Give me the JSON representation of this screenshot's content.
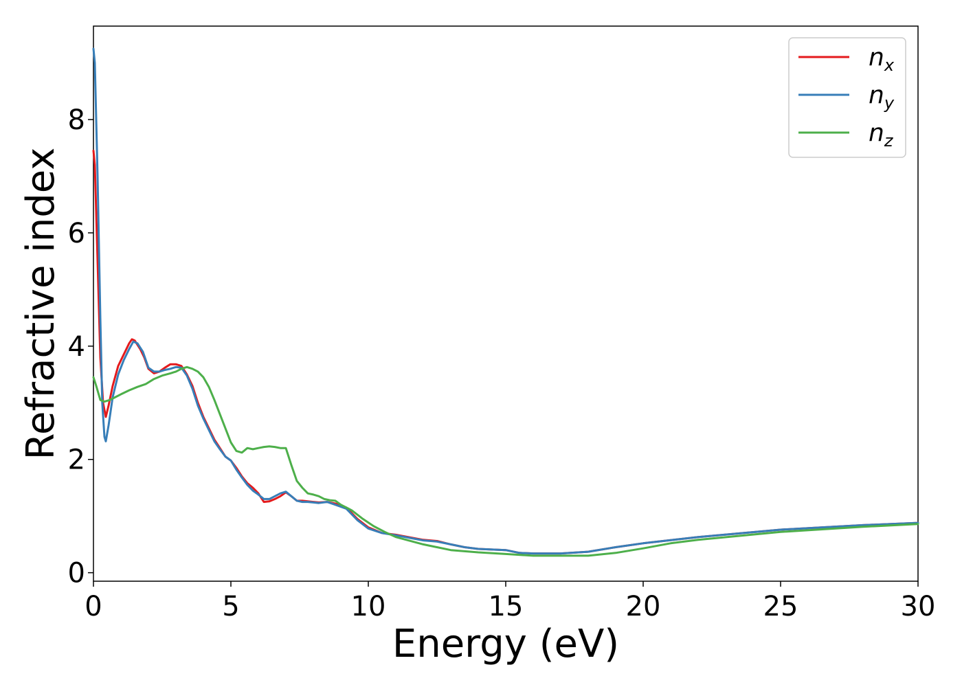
{
  "chart_data": {
    "type": "line",
    "title": "",
    "xlabel": "Energy (eV)",
    "ylabel": "Refractive index",
    "xlim": [
      0,
      30
    ],
    "ylim": [
      -0.15,
      9.65
    ],
    "xticks": [
      0,
      5,
      10,
      15,
      20,
      25,
      30
    ],
    "yticks": [
      0,
      2,
      4,
      6,
      8
    ],
    "grid": false,
    "legend_position": "top-right",
    "series": [
      {
        "name": "n_x",
        "legend_base": "n",
        "legend_sub": "x",
        "color": "#e41a1c",
        "points": [
          [
            0,
            7.45
          ],
          [
            0.05,
            7.2
          ],
          [
            0.15,
            5.5
          ],
          [
            0.25,
            3.8
          ],
          [
            0.35,
            3.0
          ],
          [
            0.45,
            2.75
          ],
          [
            0.55,
            2.95
          ],
          [
            0.7,
            3.3
          ],
          [
            0.9,
            3.65
          ],
          [
            1.1,
            3.85
          ],
          [
            1.3,
            4.05
          ],
          [
            1.4,
            4.12
          ],
          [
            1.5,
            4.1
          ],
          [
            1.7,
            3.95
          ],
          [
            1.85,
            3.8
          ],
          [
            2.0,
            3.6
          ],
          [
            2.2,
            3.52
          ],
          [
            2.4,
            3.55
          ],
          [
            2.6,
            3.62
          ],
          [
            2.8,
            3.68
          ],
          [
            3.0,
            3.68
          ],
          [
            3.2,
            3.65
          ],
          [
            3.4,
            3.5
          ],
          [
            3.6,
            3.3
          ],
          [
            3.8,
            3.0
          ],
          [
            4.0,
            2.75
          ],
          [
            4.2,
            2.55
          ],
          [
            4.4,
            2.35
          ],
          [
            4.6,
            2.2
          ],
          [
            4.8,
            2.05
          ],
          [
            5.0,
            1.98
          ],
          [
            5.2,
            1.85
          ],
          [
            5.4,
            1.7
          ],
          [
            5.6,
            1.58
          ],
          [
            5.8,
            1.5
          ],
          [
            6.0,
            1.4
          ],
          [
            6.2,
            1.25
          ],
          [
            6.4,
            1.26
          ],
          [
            6.6,
            1.3
          ],
          [
            6.8,
            1.35
          ],
          [
            7.0,
            1.42
          ],
          [
            7.2,
            1.35
          ],
          [
            7.4,
            1.27
          ],
          [
            7.6,
            1.27
          ],
          [
            7.8,
            1.26
          ],
          [
            8.0,
            1.25
          ],
          [
            8.2,
            1.24
          ],
          [
            8.5,
            1.25
          ],
          [
            8.8,
            1.22
          ],
          [
            9.2,
            1.15
          ],
          [
            9.6,
            0.95
          ],
          [
            10,
            0.8
          ],
          [
            10.5,
            0.7
          ],
          [
            11,
            0.67
          ],
          [
            12,
            0.58
          ],
          [
            12.5,
            0.56
          ],
          [
            13,
            0.5
          ],
          [
            13.5,
            0.45
          ],
          [
            14,
            0.42
          ],
          [
            15,
            0.4
          ],
          [
            15.5,
            0.35
          ],
          [
            16,
            0.34
          ],
          [
            17,
            0.34
          ],
          [
            18,
            0.37
          ],
          [
            19,
            0.45
          ],
          [
            20,
            0.52
          ],
          [
            22,
            0.63
          ],
          [
            25,
            0.76
          ],
          [
            28,
            0.84
          ],
          [
            30,
            0.88
          ]
        ]
      },
      {
        "name": "n_y",
        "legend_base": "n",
        "legend_sub": "y",
        "color": "#377eb8",
        "points": [
          [
            0,
            9.25
          ],
          [
            0.05,
            9.0
          ],
          [
            0.15,
            7.0
          ],
          [
            0.25,
            4.5
          ],
          [
            0.32,
            3.0
          ],
          [
            0.4,
            2.4
          ],
          [
            0.45,
            2.32
          ],
          [
            0.55,
            2.6
          ],
          [
            0.7,
            3.1
          ],
          [
            0.9,
            3.5
          ],
          [
            1.1,
            3.75
          ],
          [
            1.3,
            3.95
          ],
          [
            1.45,
            4.08
          ],
          [
            1.6,
            4.05
          ],
          [
            1.8,
            3.9
          ],
          [
            2.0,
            3.62
          ],
          [
            2.2,
            3.55
          ],
          [
            2.4,
            3.55
          ],
          [
            2.6,
            3.58
          ],
          [
            2.8,
            3.6
          ],
          [
            3.0,
            3.63
          ],
          [
            3.2,
            3.62
          ],
          [
            3.4,
            3.48
          ],
          [
            3.6,
            3.25
          ],
          [
            3.8,
            2.95
          ],
          [
            4.0,
            2.72
          ],
          [
            4.2,
            2.52
          ],
          [
            4.4,
            2.32
          ],
          [
            4.6,
            2.18
          ],
          [
            4.8,
            2.05
          ],
          [
            5.0,
            1.98
          ],
          [
            5.2,
            1.82
          ],
          [
            5.4,
            1.68
          ],
          [
            5.6,
            1.55
          ],
          [
            5.8,
            1.45
          ],
          [
            6.0,
            1.38
          ],
          [
            6.2,
            1.3
          ],
          [
            6.4,
            1.3
          ],
          [
            6.6,
            1.35
          ],
          [
            6.8,
            1.4
          ],
          [
            7.0,
            1.43
          ],
          [
            7.2,
            1.35
          ],
          [
            7.4,
            1.27
          ],
          [
            7.6,
            1.25
          ],
          [
            7.8,
            1.25
          ],
          [
            8.0,
            1.24
          ],
          [
            8.2,
            1.23
          ],
          [
            8.5,
            1.25
          ],
          [
            8.8,
            1.2
          ],
          [
            9.2,
            1.13
          ],
          [
            9.6,
            0.93
          ],
          [
            10,
            0.78
          ],
          [
            10.5,
            0.7
          ],
          [
            11,
            0.66
          ],
          [
            12,
            0.57
          ],
          [
            12.5,
            0.55
          ],
          [
            13,
            0.5
          ],
          [
            13.5,
            0.45
          ],
          [
            14,
            0.42
          ],
          [
            15,
            0.4
          ],
          [
            15.5,
            0.35
          ],
          [
            16,
            0.34
          ],
          [
            17,
            0.34
          ],
          [
            18,
            0.37
          ],
          [
            19,
            0.45
          ],
          [
            20,
            0.52
          ],
          [
            22,
            0.63
          ],
          [
            25,
            0.76
          ],
          [
            28,
            0.84
          ],
          [
            30,
            0.88
          ]
        ]
      },
      {
        "name": "n_z",
        "legend_base": "n",
        "legend_sub": "z",
        "color": "#4daf4a",
        "points": [
          [
            0,
            3.45
          ],
          [
            0.1,
            3.3
          ],
          [
            0.25,
            3.05
          ],
          [
            0.4,
            3.02
          ],
          [
            0.6,
            3.05
          ],
          [
            0.8,
            3.1
          ],
          [
            1.0,
            3.15
          ],
          [
            1.3,
            3.22
          ],
          [
            1.6,
            3.28
          ],
          [
            1.9,
            3.33
          ],
          [
            2.2,
            3.42
          ],
          [
            2.5,
            3.48
          ],
          [
            2.8,
            3.52
          ],
          [
            3.0,
            3.55
          ],
          [
            3.2,
            3.6
          ],
          [
            3.4,
            3.63
          ],
          [
            3.6,
            3.6
          ],
          [
            3.8,
            3.55
          ],
          [
            4.0,
            3.45
          ],
          [
            4.2,
            3.28
          ],
          [
            4.4,
            3.05
          ],
          [
            4.6,
            2.8
          ],
          [
            4.8,
            2.55
          ],
          [
            5.0,
            2.3
          ],
          [
            5.2,
            2.15
          ],
          [
            5.4,
            2.12
          ],
          [
            5.6,
            2.2
          ],
          [
            5.8,
            2.18
          ],
          [
            6.0,
            2.2
          ],
          [
            6.2,
            2.22
          ],
          [
            6.4,
            2.23
          ],
          [
            6.6,
            2.22
          ],
          [
            6.8,
            2.2
          ],
          [
            7.0,
            2.2
          ],
          [
            7.2,
            1.9
          ],
          [
            7.4,
            1.62
          ],
          [
            7.6,
            1.5
          ],
          [
            7.8,
            1.4
          ],
          [
            8.0,
            1.38
          ],
          [
            8.2,
            1.35
          ],
          [
            8.4,
            1.3
          ],
          [
            8.6,
            1.28
          ],
          [
            8.8,
            1.27
          ],
          [
            9.0,
            1.2
          ],
          [
            9.4,
            1.1
          ],
          [
            9.8,
            0.95
          ],
          [
            10.2,
            0.82
          ],
          [
            10.6,
            0.72
          ],
          [
            11,
            0.63
          ],
          [
            12,
            0.5
          ],
          [
            13,
            0.4
          ],
          [
            14,
            0.36
          ],
          [
            15,
            0.33
          ],
          [
            16,
            0.3
          ],
          [
            17,
            0.3
          ],
          [
            18,
            0.3
          ],
          [
            19,
            0.35
          ],
          [
            20,
            0.43
          ],
          [
            21,
            0.52
          ],
          [
            22,
            0.58
          ],
          [
            25,
            0.72
          ],
          [
            28,
            0.81
          ],
          [
            30,
            0.86
          ]
        ]
      }
    ]
  }
}
